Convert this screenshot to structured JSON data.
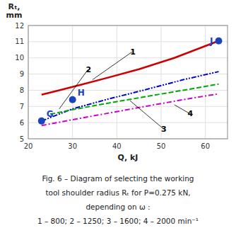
{
  "chart_data": {
    "type": "line",
    "xlabel": "Q, kJ",
    "ylabel": [
      "Rₜ,",
      "mm"
    ],
    "xlim": [
      20,
      65
    ],
    "ylim": [
      5,
      12
    ],
    "xticks": [
      20,
      30,
      40,
      50,
      60
    ],
    "yticks": [
      5,
      6,
      7,
      8,
      9,
      10,
      11,
      12
    ],
    "grid": true,
    "series": [
      {
        "color": "#cc0000",
        "line_style": "solid",
        "x": [
          23,
          27,
          32,
          38,
          45,
          53,
          63
        ],
        "values": [
          7.72,
          8.0,
          8.35,
          8.78,
          9.3,
          10.0,
          11.05
        ]
      },
      {
        "color": "#0000cc",
        "line_style": "dashdotdot",
        "x": [
          23,
          30,
          38,
          46,
          55,
          63
        ],
        "values": [
          6.1,
          6.85,
          7.45,
          8.0,
          8.65,
          9.15
        ]
      },
      {
        "color": "#00aa00",
        "line_style": "dashed",
        "x": [
          25,
          30,
          38,
          46,
          55,
          63
        ],
        "values": [
          6.52,
          6.8,
          7.2,
          7.58,
          8.0,
          8.38
        ]
      },
      {
        "color": "#cc00cc",
        "line_style": "dashdot",
        "x": [
          23,
          30,
          38,
          46,
          55,
          63
        ],
        "values": [
          5.82,
          6.18,
          6.58,
          6.98,
          7.42,
          7.78
        ]
      }
    ],
    "points": [
      {
        "label": "G",
        "x": 23,
        "y": 6.1,
        "color": "#1a44bb"
      },
      {
        "label": "H",
        "x": 30,
        "y": 7.42,
        "color": "#1a44bb"
      },
      {
        "label": "J",
        "x": 63,
        "y": 11.05,
        "color": "#1a44bb"
      }
    ],
    "annotations": [
      {
        "text": "1",
        "x": 34.5,
        "y": 8.65,
        "text_x": 43,
        "text_y": 10.2
      },
      {
        "text": "2",
        "x": 27,
        "y": 6.85,
        "text_x": 33,
        "text_y": 9.1
      },
      {
        "text": "3",
        "x": 43,
        "y": 7.35,
        "text_x": 50,
        "text_y": 5.45
      },
      {
        "text": "4",
        "x": 53,
        "y": 7.1,
        "text_x": 56,
        "text_y": 6.38
      }
    ],
    "caption": [
      "Fig. 6 – Diagram of selecting the working",
      "tool shoulder radius Rₜ for P=0.275 kN,",
      "depending on ω :",
      "1 – 800; 2 – 1250; 3 – 1600; 4 – 2000 min⁻¹"
    ]
  }
}
